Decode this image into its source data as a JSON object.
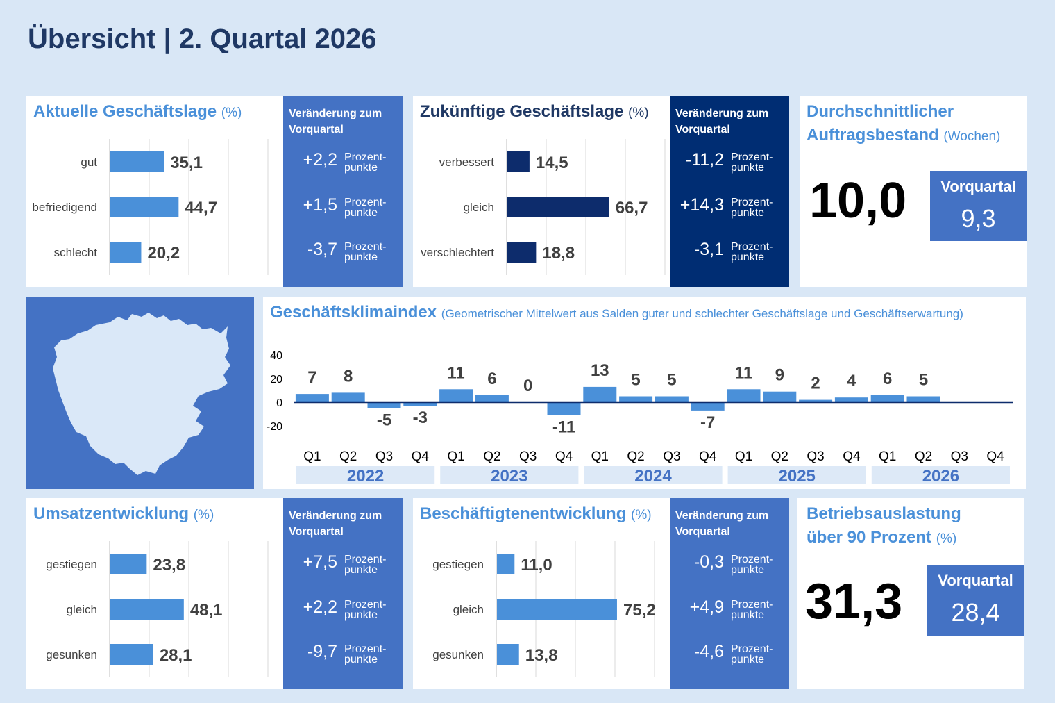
{
  "title": "Übersicht | 2. Quartal 2026",
  "colors": {
    "light_bar": "#4a90d9",
    "dark_bar": "#0d2c6c",
    "side_light": "#4472c4",
    "side_dark": "#002d73"
  },
  "change_header": "Veränderung zum Vorquartal",
  "pp_label_1": "Prozent-",
  "pp_label_2": "punkte",
  "vorquartal_label": "Vorquartal",
  "panels": {
    "aktuell": {
      "title": "Aktuelle Geschäftslage",
      "unit": "(%)",
      "categories": [
        "gut",
        "befriedigend",
        "schlecht"
      ],
      "labels": [
        "35,1",
        "44,7",
        "20,2"
      ],
      "changes": [
        "+2,2",
        "+1,5",
        "-3,7"
      ]
    },
    "zukunft": {
      "title": "Zukünftige Geschäftslage",
      "unit": "(%)",
      "categories": [
        "verbessert",
        "gleich",
        "verschlechtert"
      ],
      "labels": [
        "14,5",
        "66,7",
        "18,8"
      ],
      "changes": [
        "-11,2",
        "+14,3",
        "-3,1"
      ]
    },
    "auftrag": {
      "title_line1": "Durchschnittlicher",
      "title_line2": "Auftragsbestand",
      "unit": "(Wochen)",
      "value": "10,0",
      "previous": "9,3"
    },
    "umsatz": {
      "title": "Umsatzentwicklung",
      "unit": "(%)",
      "categories": [
        "gestiegen",
        "gleich",
        "gesunken"
      ],
      "labels": [
        "23,8",
        "48,1",
        "28,1"
      ],
      "changes": [
        "+7,5",
        "+2,2",
        "-9,7"
      ]
    },
    "beschaeftigte": {
      "title": "Beschäftigtenentwicklung",
      "unit": "(%)",
      "categories": [
        "gestiegen",
        "gleich",
        "gesunken"
      ],
      "labels": [
        "11,0",
        "75,2",
        "13,8"
      ],
      "changes": [
        "-0,3",
        "+4,9",
        "-4,6"
      ]
    },
    "auslastung": {
      "title_line1": "Betriebsauslastung",
      "title_line2": "über 90 Prozent",
      "unit": "(%)",
      "value": "31,3",
      "previous": "28,4"
    },
    "klima": {
      "title": "Geschäftsklimaindex",
      "subtitle": "(Geometrischer Mittelwert aus Salden guter und schlechter Geschäftslage und Geschäftserwartung)"
    }
  },
  "chart_data": [
    {
      "type": "bar",
      "title": "Aktuelle Geschäftslage (%)",
      "categories": [
        "gut",
        "befriedigend",
        "schlecht"
      ],
      "values": [
        35.1,
        44.7,
        20.2
      ],
      "xlim": [
        0,
        100
      ]
    },
    {
      "type": "bar",
      "title": "Zukünftige Geschäftslage (%)",
      "categories": [
        "verbessert",
        "gleich",
        "verschlechtert"
      ],
      "values": [
        14.5,
        66.7,
        18.8
      ],
      "xlim": [
        0,
        100
      ]
    },
    {
      "type": "bar",
      "title": "Umsatzentwicklung (%)",
      "categories": [
        "gestiegen",
        "gleich",
        "gesunken"
      ],
      "values": [
        23.8,
        48.1,
        28.1
      ],
      "xlim": [
        0,
        100
      ]
    },
    {
      "type": "bar",
      "title": "Beschäftigtenentwicklung (%)",
      "categories": [
        "gestiegen",
        "gleich",
        "gesunken"
      ],
      "values": [
        11.0,
        75.2,
        13.8
      ],
      "xlim": [
        0,
        100
      ]
    },
    {
      "type": "bar",
      "title": "Geschäftsklimaindex",
      "years": [
        "2022",
        "2023",
        "2024",
        "2025",
        "2026"
      ],
      "quarters": [
        "Q1",
        "Q2",
        "Q3",
        "Q4"
      ],
      "values": [
        7,
        8,
        -5,
        -3,
        11,
        6,
        0,
        -11,
        13,
        5,
        5,
        -7,
        11,
        9,
        2,
        4,
        6,
        5,
        null,
        null
      ],
      "yticks": [
        40,
        20,
        0,
        -20
      ],
      "ylim": [
        -20,
        40
      ]
    }
  ]
}
